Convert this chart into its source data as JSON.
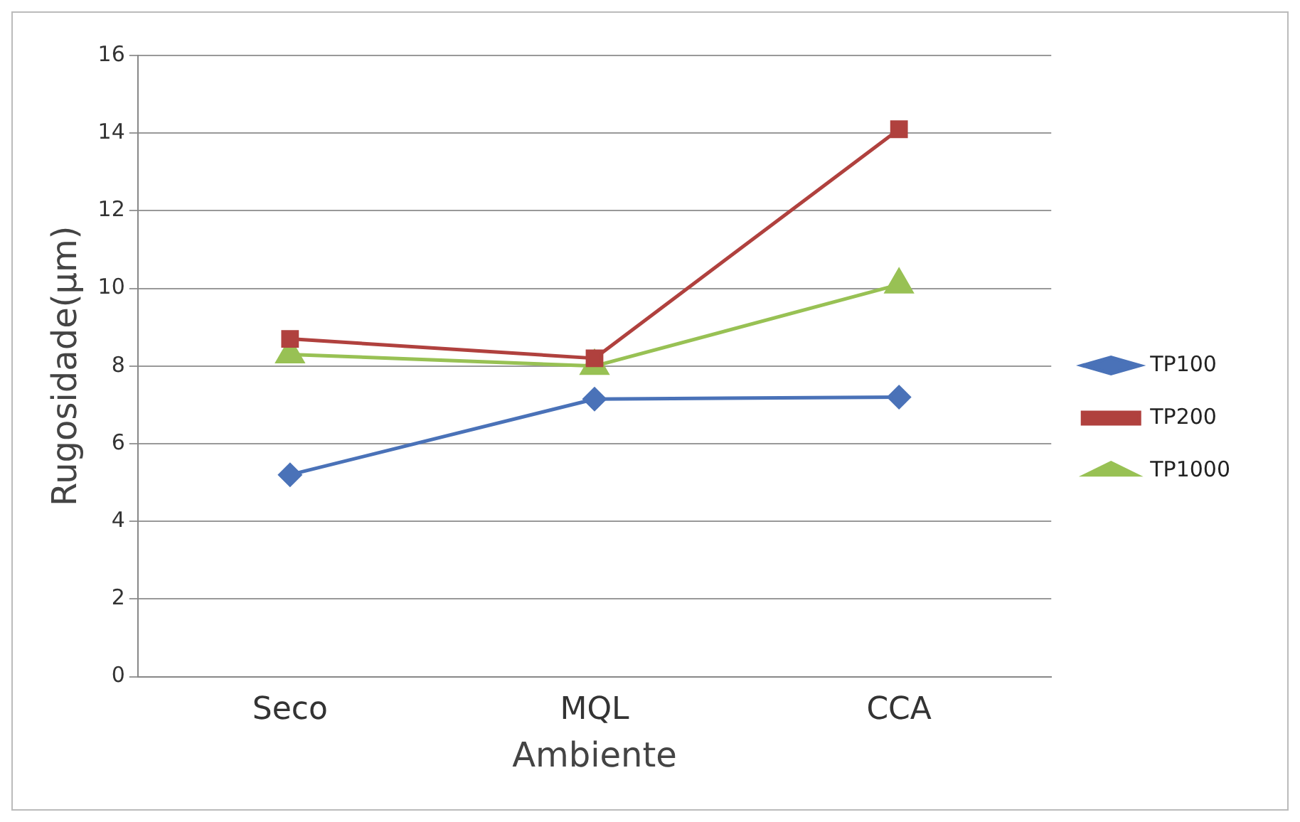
{
  "chart_data": {
    "type": "line",
    "xlabel": "Ambiente",
    "ylabel": "Rugosidade(μm)",
    "categories": [
      "Seco",
      "MQL",
      "CCA"
    ],
    "series": [
      {
        "name": "TP100",
        "color": "#4a72b8",
        "marker": "diamond",
        "values": [
          5.2,
          7.15,
          7.2
        ]
      },
      {
        "name": "TP200",
        "color": "#b0413e",
        "marker": "square",
        "values": [
          8.7,
          8.2,
          14.1
        ]
      },
      {
        "name": "TP1000",
        "color": "#98c154",
        "marker": "triangle",
        "values": [
          8.3,
          8.0,
          10.1
        ]
      }
    ],
    "ylim": [
      0,
      16
    ],
    "yticks": [
      0,
      2,
      4,
      6,
      8,
      10,
      12,
      14,
      16
    ],
    "grid": "y",
    "legend": "right"
  }
}
